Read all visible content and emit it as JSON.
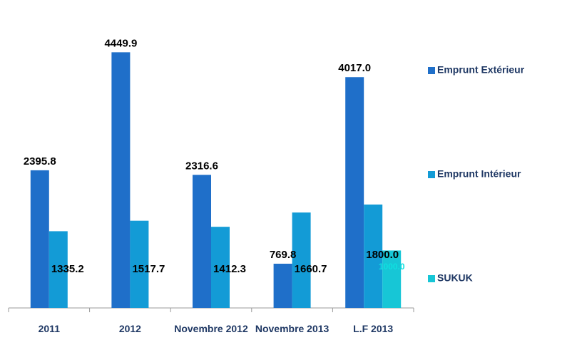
{
  "chart_data": {
    "type": "bar",
    "categories": [
      "2011",
      "2012",
      "Novembre 2012",
      "Novembre 2013",
      "L.F 2013"
    ],
    "series": [
      {
        "name": "Emprunt Extérieur",
        "color": "#1f6fc9",
        "values": [
          2395.8,
          4449.9,
          2316.6,
          769.8,
          4017.0
        ],
        "value_labels": [
          "2395.8",
          "4449.9",
          "2316.6",
          "769.8",
          "4017.0"
        ]
      },
      {
        "name": "Emprunt Intérieur",
        "color": "#139bd6",
        "values": [
          1335.2,
          1517.7,
          1412.3,
          1660.7,
          1800.0
        ],
        "value_labels": [
          "1335.2",
          "1517.7",
          "1412.3",
          "1660.7",
          "1800.0"
        ]
      },
      {
        "name": "SUKUK",
        "color": "#17c6d6",
        "values": [
          null,
          null,
          null,
          null,
          1000.0
        ],
        "value_labels": [
          null,
          null,
          null,
          null,
          "1000.0"
        ]
      }
    ],
    "ylim": [
      0,
      5000
    ],
    "legend": "right"
  }
}
